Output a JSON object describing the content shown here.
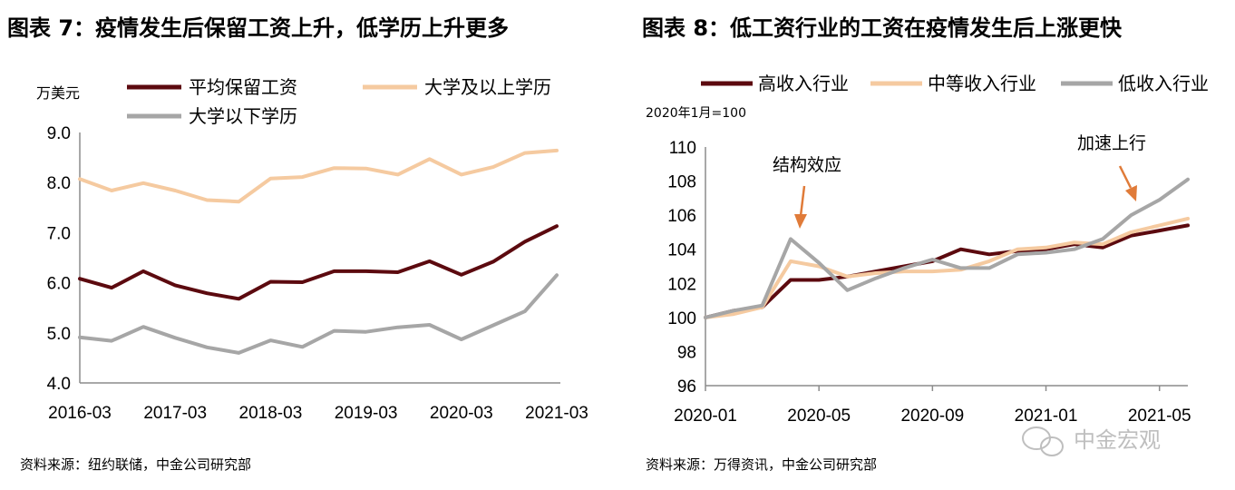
{
  "left_panel": {
    "title": "图表 7：疫情发生后保留工资上升，低学历上升更多",
    "unit": "万美元",
    "source": "资料来源：纽约联储，中金公司研究部"
  },
  "right_panel": {
    "title": "图表 8：低工资行业的工资在疫情发生后上涨更快",
    "note": "2020年1月=100",
    "source": "资料来源：万得资讯，中金公司研究部"
  },
  "watermark": "中金宏观",
  "chart_data": [
    {
      "type": "line",
      "x_tick_labels": [
        "2016-03",
        "2017-03",
        "2018-03",
        "2019-03",
        "2020-03",
        "2021-03"
      ],
      "ylim": [
        4.0,
        9.0
      ],
      "y_ticks": [
        4.0,
        5.0,
        6.0,
        7.0,
        8.0,
        9.0
      ],
      "y_tick_labels": [
        "4.0",
        "5.0",
        "6.0",
        "7.0",
        "8.0",
        "9.0"
      ],
      "grid": false,
      "legend_position": "top",
      "series": [
        {
          "name": "平均保留工资",
          "color": "#5c0a0f",
          "values": [
            6.08,
            5.9,
            6.23,
            5.95,
            5.79,
            5.68,
            6.02,
            6.01,
            6.23,
            6.23,
            6.21,
            6.43,
            6.16,
            6.42,
            6.82,
            7.13
          ]
        },
        {
          "name": "大学及以上学历",
          "color": "#f5caa0",
          "values": [
            8.07,
            7.84,
            7.99,
            7.84,
            7.65,
            7.62,
            8.08,
            8.11,
            8.29,
            8.28,
            8.16,
            8.47,
            8.16,
            8.31,
            8.59,
            8.64
          ]
        },
        {
          "name": "大学以下学历",
          "color": "#a6a6a6",
          "values": [
            4.91,
            4.84,
            5.12,
            4.9,
            4.71,
            4.6,
            4.85,
            4.72,
            5.04,
            5.02,
            5.11,
            5.16,
            4.87,
            5.15,
            5.43,
            6.15
          ]
        }
      ]
    },
    {
      "type": "line",
      "x_tick_labels": [
        "2020-01",
        "2020-05",
        "2020-09",
        "2021-01",
        "2021-05"
      ],
      "ylim": [
        96,
        110
      ],
      "y_ticks": [
        96,
        98,
        100,
        102,
        104,
        106,
        108,
        110
      ],
      "y_tick_labels": [
        "96",
        "98",
        "100",
        "102",
        "104",
        "106",
        "108",
        "110"
      ],
      "grid": false,
      "legend_position": "top",
      "annotations": [
        "结构效应",
        "加速上行"
      ],
      "series": [
        {
          "name": "高收入行业",
          "color": "#5c0a0f",
          "values": [
            100.0,
            100.4,
            100.6,
            102.2,
            102.2,
            102.4,
            102.7,
            103.0,
            103.3,
            104.0,
            103.7,
            103.9,
            104.0,
            104.3,
            104.1,
            104.8,
            105.1,
            105.4
          ]
        },
        {
          "name": "中等收入行业",
          "color": "#f5caa0",
          "values": [
            100.0,
            100.2,
            100.6,
            103.3,
            103.0,
            102.4,
            102.6,
            102.7,
            102.7,
            102.8,
            103.3,
            104.0,
            104.1,
            104.4,
            104.3,
            105.0,
            105.4,
            105.8
          ]
        },
        {
          "name": "低收入行业",
          "color": "#a6a6a6",
          "values": [
            100.0,
            100.4,
            100.7,
            104.6,
            103.2,
            101.6,
            102.3,
            102.9,
            103.4,
            102.9,
            102.9,
            103.7,
            103.8,
            104.0,
            104.6,
            106.0,
            106.9,
            108.1
          ]
        }
      ]
    }
  ]
}
